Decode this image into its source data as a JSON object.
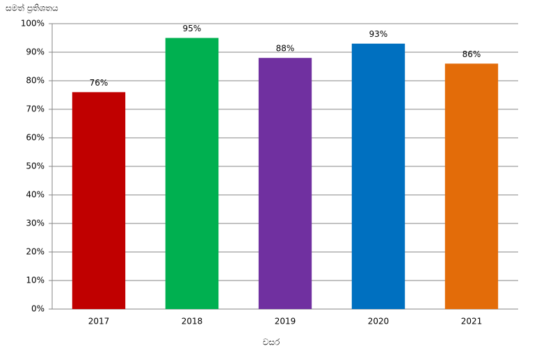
{
  "chart_data": {
    "type": "bar",
    "y_label": "සමත් ප්‍රතිශතය",
    "x_label": "වසර",
    "categories": [
      "2017",
      "2018",
      "2019",
      "2020",
      "2021"
    ],
    "values": [
      76,
      95,
      88,
      93,
      86
    ],
    "value_labels": [
      "76%",
      "95%",
      "88%",
      "93%",
      "86%"
    ],
    "colors": [
      "#c00000",
      "#00b050",
      "#7030a0",
      "#0070c0",
      "#e36c09"
    ],
    "ylim": [
      0,
      100
    ],
    "yticks": [
      {
        "value": 0,
        "label": "0%"
      },
      {
        "value": 10,
        "label": "10%"
      },
      {
        "value": 20,
        "label": "20%"
      },
      {
        "value": 30,
        "label": "30%"
      },
      {
        "value": 40,
        "label": "40%"
      },
      {
        "value": 50,
        "label": "50%"
      },
      {
        "value": 60,
        "label": "60%"
      },
      {
        "value": 70,
        "label": "70%"
      },
      {
        "value": 80,
        "label": "80%"
      },
      {
        "value": 90,
        "label": "90%"
      },
      {
        "value": 100,
        "label": "100%"
      }
    ],
    "grid": true
  }
}
